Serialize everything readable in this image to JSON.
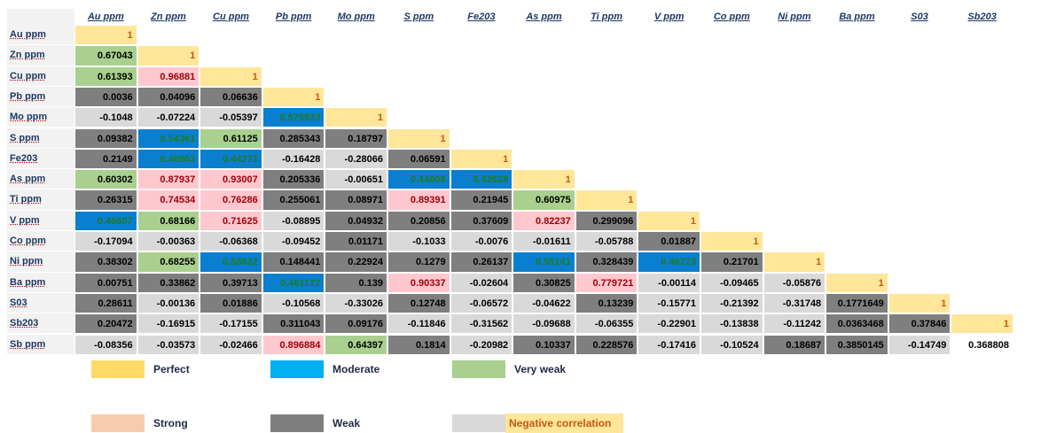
{
  "table": {
    "columns": [
      "Au ppm",
      "Zn ppm",
      "Cu ppm",
      "Pb ppm",
      "Mo ppm",
      "S  ppm",
      "Fe203",
      "As ppm",
      "Ti ppm",
      "V ppm",
      "Co ppm",
      "Ni ppm",
      "Ba ppm",
      "S03",
      "Sb203"
    ],
    "cell_styles": [
      {
        "background": "#ffe699",
        "color": "#c65911"
      },
      {
        "background": "#0a7fd0",
        "color": "#1f7a1f"
      },
      {
        "background": "#a9d08e",
        "color": "#000000"
      },
      {
        "background": "#ffc7ce",
        "color": "#9c0006"
      },
      {
        "background": "#7f7f7f",
        "color": "#000000"
      },
      {
        "background": "#d9d9d9",
        "color": "#000000"
      },
      {
        "background": "#ffffff",
        "color": "#000000"
      }
    ],
    "rows": [
      {
        "label": "Au ppm",
        "cells": [
          1
        ],
        "styles": [
          0
        ]
      },
      {
        "label": "Zn ppm",
        "cells": [
          0.67043,
          1
        ],
        "styles": [
          2,
          0
        ]
      },
      {
        "label": "Cu ppm",
        "cells": [
          0.61393,
          0.96881,
          1
        ],
        "styles": [
          2,
          3,
          0
        ]
      },
      {
        "label": "Pb ppm",
        "cells": [
          0.0036,
          0.04096,
          0.06636,
          1
        ],
        "styles": [
          4,
          4,
          4,
          0
        ]
      },
      {
        "label": "Mo ppm",
        "cells": [
          -0.1048,
          -0.07224,
          -0.05397,
          0.570933,
          1
        ],
        "styles": [
          5,
          5,
          5,
          1,
          0
        ]
      },
      {
        "label": "S  ppm",
        "cells": [
          0.09382,
          0.54361,
          0.61125,
          0.285343,
          0.18797,
          1
        ],
        "styles": [
          4,
          1,
          2,
          4,
          4,
          0
        ]
      },
      {
        "label": "Fe203",
        "cells": [
          0.2149,
          0.46863,
          0.44272,
          -0.16428,
          -0.28066,
          0.06591,
          1
        ],
        "styles": [
          4,
          1,
          1,
          5,
          5,
          4,
          0
        ]
      },
      {
        "label": "As ppm",
        "cells": [
          0.60302,
          0.87937,
          0.93007,
          0.205336,
          -0.00651,
          0.44608,
          0.42628,
          1
        ],
        "styles": [
          2,
          3,
          3,
          4,
          5,
          1,
          1,
          0
        ]
      },
      {
        "label": "Ti ppm",
        "cells": [
          0.26315,
          0.74534,
          0.76286,
          0.255061,
          0.08971,
          0.89391,
          0.21945,
          0.60975,
          1
        ],
        "styles": [
          4,
          3,
          3,
          4,
          4,
          3,
          4,
          2,
          0
        ]
      },
      {
        "label": "V ppm",
        "cells": [
          0.46607,
          0.68166,
          0.71625,
          -0.08895,
          0.04932,
          0.20856,
          0.37609,
          0.82237,
          0.299096,
          1
        ],
        "styles": [
          1,
          2,
          3,
          5,
          4,
          4,
          4,
          3,
          4,
          0
        ]
      },
      {
        "label": "Co ppm",
        "cells": [
          -0.17094,
          -0.00363,
          -0.06368,
          -0.09452,
          0.01171,
          -0.1033,
          -0.0076,
          -0.01611,
          -0.05788,
          0.01887,
          1
        ],
        "styles": [
          5,
          5,
          5,
          5,
          4,
          5,
          5,
          5,
          5,
          4,
          0
        ]
      },
      {
        "label": "Ni ppm",
        "cells": [
          0.38302,
          0.68255,
          0.58832,
          0.148441,
          0.22924,
          0.1279,
          0.26137,
          0.55141,
          0.328439,
          0.46723,
          0.21701,
          1
        ],
        "styles": [
          4,
          2,
          1,
          4,
          4,
          4,
          4,
          1,
          4,
          1,
          4,
          0
        ]
      },
      {
        "label": "Ba ppm",
        "cells": [
          0.00751,
          0.33862,
          0.39713,
          0.461122,
          0.139,
          0.90337,
          -0.02604,
          0.30825,
          0.779721,
          -0.00114,
          -0.09465,
          -0.05876,
          1
        ],
        "styles": [
          4,
          4,
          4,
          1,
          4,
          3,
          5,
          4,
          3,
          5,
          5,
          5,
          0
        ]
      },
      {
        "label": "S03",
        "cells": [
          0.28611,
          -0.00136,
          0.01886,
          -0.10568,
          -0.33026,
          0.12748,
          -0.06572,
          -0.04622,
          0.13239,
          -0.15771,
          -0.21392,
          -0.31748,
          0.1771649,
          1
        ],
        "styles": [
          4,
          5,
          4,
          5,
          5,
          4,
          5,
          5,
          4,
          5,
          5,
          5,
          4,
          0
        ]
      },
      {
        "label": "Sb203",
        "cells": [
          0.20472,
          -0.16915,
          -0.17155,
          0.311043,
          0.09176,
          -0.11846,
          -0.31562,
          -0.09688,
          -0.06355,
          -0.22901,
          -0.13838,
          -0.11242,
          0.0363468,
          0.37846,
          1
        ],
        "styles": [
          4,
          5,
          5,
          4,
          4,
          5,
          5,
          5,
          5,
          5,
          5,
          5,
          4,
          4,
          0
        ]
      },
      {
        "label": "Sb ppm",
        "cells": [
          -0.08356,
          -0.03573,
          -0.02466,
          0.896884,
          0.64397,
          0.1814,
          -0.20982,
          0.10337,
          0.228576,
          -0.17416,
          -0.10524,
          0.18687,
          0.3850145,
          -0.14749,
          0.368808
        ],
        "styles": [
          5,
          5,
          5,
          3,
          2,
          4,
          5,
          4,
          4,
          5,
          5,
          4,
          4,
          5,
          6
        ]
      }
    ]
  },
  "legend": [
    {
      "label": "Perfect",
      "color": "#ffd966"
    },
    {
      "label": "Moderate",
      "color": "#00b0f0"
    },
    {
      "label": "Very weak",
      "color": "#a9d08e"
    },
    {
      "label": "Strong",
      "color": "#f8cbad"
    },
    {
      "label": "Weak",
      "color": "#7f7f7f"
    },
    {
      "label": "Negative correlation",
      "color": "#d9d9d9",
      "label_background": "#ffe699"
    }
  ]
}
